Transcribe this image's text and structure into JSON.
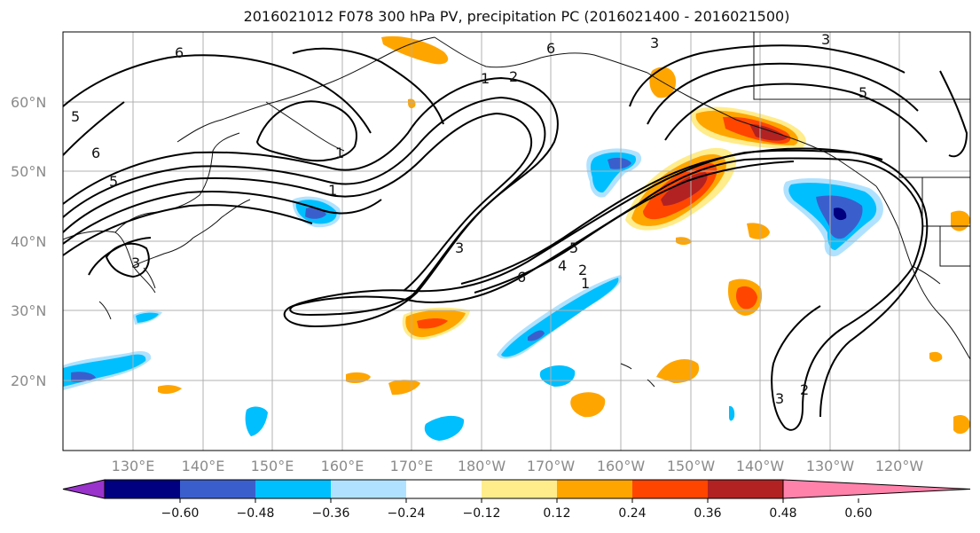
{
  "title": "2016021012 F078 300 hPa PV, precipitation PC (2016021400 - 2016021500)",
  "lat_labels": [
    "60°N",
    "50°N",
    "40°N",
    "30°N",
    "20°N"
  ],
  "lon_labels": [
    "130°E",
    "140°E",
    "150°E",
    "160°E",
    "170°E",
    "180°W",
    "170°W",
    "160°W",
    "150°W",
    "140°W",
    "130°W",
    "120°W"
  ],
  "contour_labels": [
    "6",
    "5",
    "6",
    "5",
    "1",
    "3",
    "1",
    "2",
    "6",
    "3",
    "3",
    "5",
    "6",
    "1",
    "3",
    "4",
    "2",
    "5",
    "2",
    "3",
    "1"
  ],
  "colorbar": {
    "ticks": [
      "−0.60",
      "−0.48",
      "−0.36",
      "−0.24",
      "−0.12",
      "0.12",
      "0.24",
      "0.36",
      "0.48",
      "0.60"
    ],
    "colors": [
      "#9933cc",
      "#000080",
      "#3a5fcd",
      "#00bfff",
      "#b0e2ff",
      "#ffffff",
      "#ffec8b",
      "#ffa500",
      "#ff4500",
      "#b22222",
      "#ff82ab"
    ]
  }
}
